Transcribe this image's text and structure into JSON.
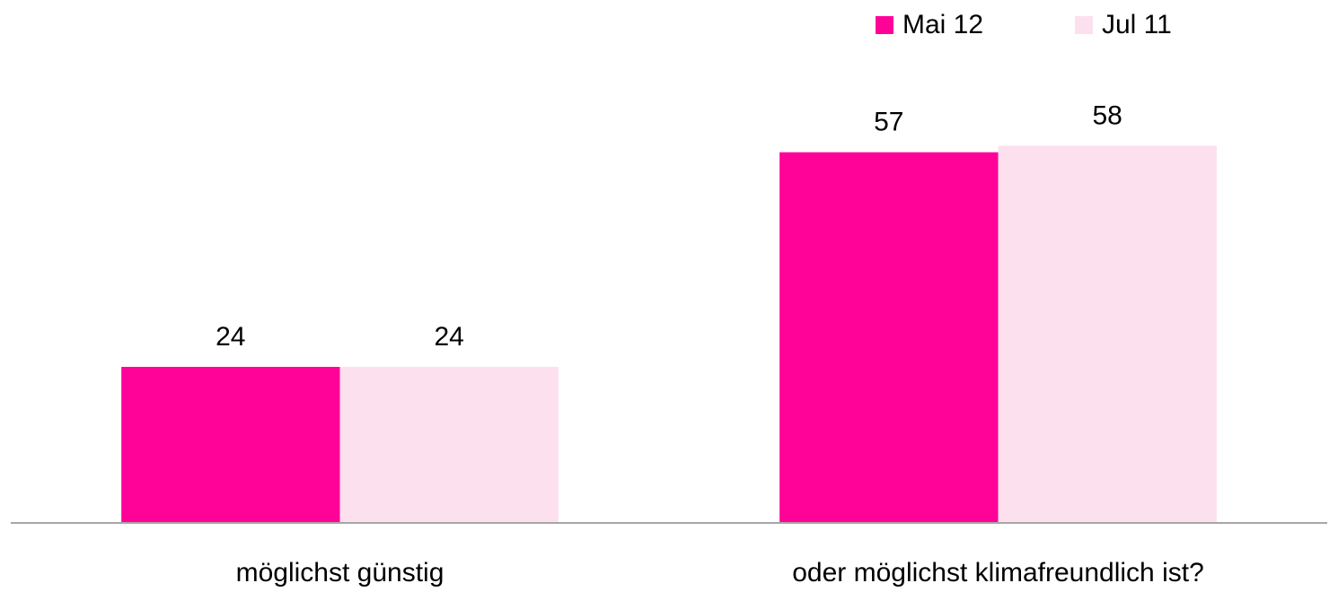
{
  "chart_data": {
    "type": "bar",
    "categories": [
      "möglichst günstig",
      "oder möglichst klimafreundlich ist?"
    ],
    "series": [
      {
        "name": "Mai 12",
        "color": "#ff0399",
        "values": [
          24,
          57
        ]
      },
      {
        "name": "Jul 11",
        "color": "#fde0ee",
        "values": [
          24,
          58
        ]
      }
    ],
    "ylim": [
      0,
      80
    ],
    "legend": "top-right",
    "grid": false
  }
}
